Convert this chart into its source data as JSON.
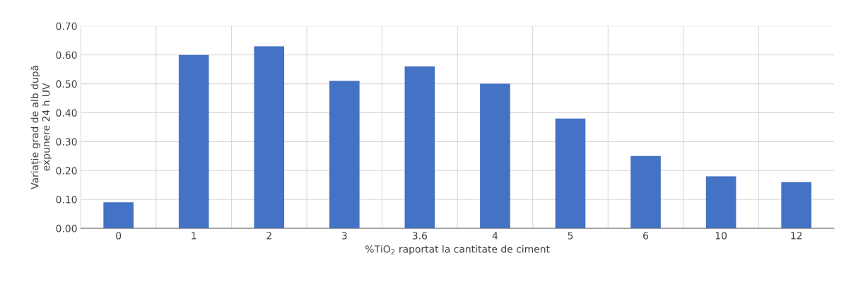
{
  "chart_data": {
    "type": "bar",
    "xlabel": "%TiO$_{2}$ raportat la cantitate de ciment",
    "ylabel": "Variație grad de alb după\nexpunere 24 h UV",
    "categories": [
      "0",
      "1",
      "2",
      "3",
      "3.6",
      "4",
      "5",
      "6",
      "10",
      "12"
    ],
    "values": [
      0.09,
      0.6,
      0.63,
      0.51,
      0.56,
      0.5,
      0.38,
      0.25,
      0.18,
      0.16
    ],
    "color": "#4472c4",
    "ylim": [
      0,
      0.7
    ],
    "yticks": [
      {
        "value": 0,
        "label": "0.00"
      },
      {
        "value": 0.1,
        "label": "0.10"
      },
      {
        "value": 0.2,
        "label": "0.20"
      },
      {
        "value": 0.3,
        "label": "0.30"
      },
      {
        "value": 0.4,
        "label": "0.40"
      },
      {
        "value": 0.5,
        "label": "0.50"
      },
      {
        "value": 0.6,
        "label": "0.60"
      },
      {
        "value": 0.7,
        "label": "0.70"
      }
    ],
    "grid": true
  }
}
